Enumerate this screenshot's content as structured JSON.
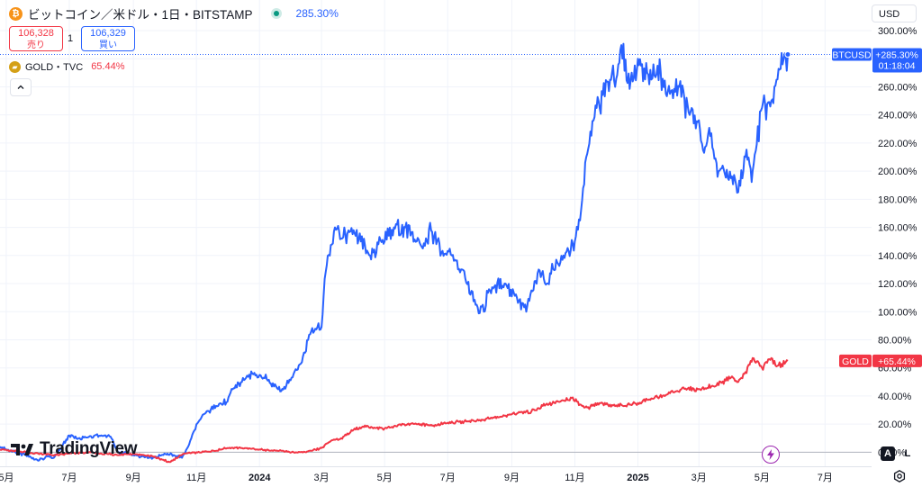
{
  "header": {
    "title": "ビットコイン／米ドル・1日・BITSTAMP",
    "btc_icon": "bitcoin-coin-icon",
    "change": "285.30%",
    "sell_price": "106,328",
    "sell_label": "売り",
    "spread": "1",
    "buy_price": "106,329",
    "buy_label": "買い"
  },
  "compare": {
    "label": "GOLD・TVC",
    "change": "65.44%",
    "icon": "gold-bars-icon"
  },
  "currency": "USD",
  "watermark": "TradingView",
  "axis_controls": {
    "auto": "A",
    "log": "L"
  },
  "colors": {
    "btc": "#2962ff",
    "gold": "#f23645",
    "text": "#131722",
    "grid": "#f0f3fa"
  },
  "chart_data": {
    "type": "line",
    "y_unit": "%",
    "ylim": [
      -10,
      300
    ],
    "y_ticks": [
      0,
      20,
      40,
      60,
      80,
      100,
      120,
      140,
      160,
      180,
      200,
      220,
      240,
      260,
      280,
      300
    ],
    "y_tick_labels": [
      "0.00%",
      "20.00%",
      "40.00%",
      "60.00%",
      "80.00%",
      "100.00%",
      "120.00%",
      "140.00%",
      "160.00%",
      "180.00%",
      "200.00%",
      "220.00%",
      "240.00%",
      "260.00%",
      "280.00%",
      "300.00%"
    ],
    "xlim": [
      "2023-04-25",
      "2025-08-15"
    ],
    "x_ticks": [
      "2023-05-01",
      "2023-07-01",
      "2023-09-01",
      "2023-11-01",
      "2024-01-01",
      "2024-03-01",
      "2024-05-01",
      "2024-07-01",
      "2024-09-01",
      "2024-11-01",
      "2025-01-01",
      "2025-03-01",
      "2025-05-01",
      "2025-07-01"
    ],
    "x_tick_labels": [
      "5月",
      "7月",
      "9月",
      "11月",
      "2024",
      "3月",
      "5月",
      "7月",
      "9月",
      "11月",
      "2025",
      "3月",
      "5月",
      "7月"
    ],
    "x_tick_bold": [
      false,
      false,
      false,
      false,
      true,
      false,
      false,
      false,
      false,
      false,
      true,
      false,
      false,
      false
    ],
    "grid": true,
    "series": [
      {
        "name": "BTCUSD",
        "label": "+285.30%",
        "countdown": "01:18:04",
        "x": [
          "2023-04-25",
          "2023-05-01",
          "2023-05-10",
          "2023-05-20",
          "2023-06-01",
          "2023-06-10",
          "2023-06-16",
          "2023-06-22",
          "2023-07-01",
          "2023-07-10",
          "2023-07-20",
          "2023-08-01",
          "2023-08-10",
          "2023-08-17",
          "2023-08-25",
          "2023-09-01",
          "2023-09-11",
          "2023-09-20",
          "2023-10-01",
          "2023-10-10",
          "2023-10-18",
          "2023-10-24",
          "2023-11-01",
          "2023-11-10",
          "2023-11-20",
          "2023-12-01",
          "2023-12-05",
          "2023-12-15",
          "2023-12-25",
          "2024-01-01",
          "2024-01-08",
          "2024-01-12",
          "2024-01-23",
          "2024-02-01",
          "2024-02-10",
          "2024-02-20",
          "2024-03-01",
          "2024-03-05",
          "2024-03-14",
          "2024-03-20",
          "2024-04-01",
          "2024-04-08",
          "2024-04-17",
          "2024-04-25",
          "2024-05-01",
          "2024-05-10",
          "2024-05-21",
          "2024-06-01",
          "2024-06-07",
          "2024-06-15",
          "2024-06-25",
          "2024-07-05",
          "2024-07-15",
          "2024-07-29",
          "2024-08-05",
          "2024-08-10",
          "2024-08-25",
          "2024-09-06",
          "2024-09-15",
          "2024-09-27",
          "2024-10-05",
          "2024-10-15",
          "2024-10-21",
          "2024-11-01",
          "2024-11-06",
          "2024-11-12",
          "2024-11-22",
          "2024-12-05",
          "2024-12-17",
          "2024-12-25",
          "2025-01-01",
          "2025-01-10",
          "2025-01-20",
          "2025-02-01",
          "2025-02-10",
          "2025-02-20",
          "2025-02-28",
          "2025-03-05",
          "2025-03-12",
          "2025-03-20",
          "2025-04-01",
          "2025-04-08",
          "2025-04-15",
          "2025-04-22",
          "2025-05-01",
          "2025-05-10",
          "2025-05-15",
          "2025-05-22",
          "2025-05-26"
        ],
        "values": [
          4,
          2,
          0,
          -2,
          -6,
          -3,
          -4,
          2,
          12,
          10,
          11,
          12,
          11,
          0,
          -1,
          -2,
          -3,
          -4,
          -1,
          -2,
          -4,
          4,
          20,
          28,
          33,
          36,
          45,
          50,
          56,
          55,
          52,
          49,
          45,
          53,
          63,
          86,
          89,
          128,
          160,
          152,
          158,
          150,
          140,
          148,
          150,
          160,
          160,
          150,
          145,
          158,
          142,
          140,
          130,
          105,
          100,
          116,
          120,
          110,
          100,
          130,
          120,
          135,
          140,
          150,
          165,
          210,
          245,
          265,
          280,
          265,
          280,
          270,
          275,
          255,
          260,
          240,
          235,
          215,
          225,
          200,
          195,
          185,
          210,
          200,
          245,
          250,
          265,
          280,
          283
        ]
      },
      {
        "name": "GOLD",
        "label": "+65.44%",
        "x": [
          "2023-04-25",
          "2023-05-05",
          "2023-05-20",
          "2023-06-01",
          "2023-06-20",
          "2023-07-01",
          "2023-07-20",
          "2023-08-01",
          "2023-08-20",
          "2023-09-01",
          "2023-09-20",
          "2023-10-01",
          "2023-10-06",
          "2023-10-20",
          "2023-11-01",
          "2023-11-20",
          "2023-12-01",
          "2023-12-15",
          "2024-01-01",
          "2024-01-20",
          "2024-02-01",
          "2024-02-15",
          "2024-03-01",
          "2024-03-10",
          "2024-03-20",
          "2024-04-01",
          "2024-04-12",
          "2024-04-20",
          "2024-05-01",
          "2024-05-20",
          "2024-06-01",
          "2024-06-20",
          "2024-07-01",
          "2024-07-20",
          "2024-08-01",
          "2024-08-20",
          "2024-09-01",
          "2024-09-20",
          "2024-10-01",
          "2024-10-20",
          "2024-10-30",
          "2024-11-06",
          "2024-11-14",
          "2024-11-25",
          "2024-12-01",
          "2024-12-20",
          "2025-01-01",
          "2025-01-20",
          "2025-02-01",
          "2025-02-15",
          "2025-03-01",
          "2025-03-15",
          "2025-04-01",
          "2025-04-08",
          "2025-04-15",
          "2025-04-22",
          "2025-05-01",
          "2025-05-10",
          "2025-05-15",
          "2025-05-26"
        ],
        "values": [
          2,
          1,
          0,
          -1,
          -2,
          -1,
          0,
          -1,
          -2,
          -1,
          -3,
          -6,
          -7,
          -1,
          0,
          1,
          3,
          3,
          2,
          1,
          0,
          0,
          3,
          8,
          10,
          16,
          19,
          17,
          17,
          20,
          20,
          19,
          21,
          22,
          23,
          25,
          27,
          29,
          33,
          37,
          39,
          34,
          32,
          35,
          34,
          33,
          35,
          39,
          42,
          45,
          45,
          47,
          53,
          50,
          57,
          67,
          60,
          67,
          61,
          65
        ]
      }
    ]
  }
}
